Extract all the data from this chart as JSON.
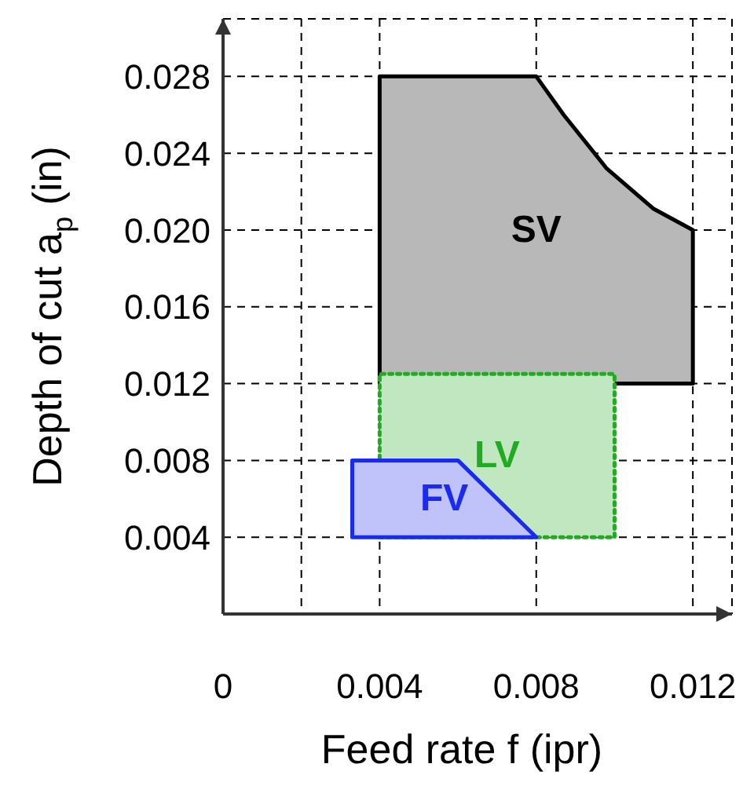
{
  "chart_data": {
    "type": "area",
    "xlabel": "Feed rate  f (ipr)",
    "ylabel": "Depth of cut  a$_{p}$ (in)",
    "xlim": [
      0,
      0.013
    ],
    "ylim": [
      0,
      0.031
    ],
    "xticks": [
      0,
      {
        "value": 0.002,
        "label": null
      },
      0.004,
      0.008,
      0.012
    ],
    "yticks": [
      0.004,
      0.008,
      0.012,
      0.016,
      {
        "value": 0.02,
        "label": "0.020"
      },
      0.024,
      0.028
    ],
    "grid": true,
    "series": [
      {
        "name": "SV",
        "type": "area",
        "color": "#000000",
        "line_style": "solid",
        "x": [
          0.004,
          0.004,
          0.008,
          0.0087,
          0.0098,
          0.011,
          0.012,
          0.012,
          0.004
        ],
        "values": [
          0.012,
          0.028,
          0.028,
          0.026,
          0.0232,
          0.0211,
          0.02,
          0.012,
          0.012
        ]
      },
      {
        "name": "LV",
        "type": "area",
        "color": "#22aa22",
        "line_style": "dotted",
        "x": [
          0.004,
          0.004,
          0.01,
          0.01,
          0.004
        ],
        "values": [
          0.004,
          0.0125,
          0.0125,
          0.004,
          0.004
        ]
      },
      {
        "name": "FV",
        "type": "area",
        "color": "#1a2aee",
        "line_style": "solid",
        "x": [
          0.0033,
          0.0033,
          0.006,
          0.008,
          0.0033
        ],
        "values": [
          0.004,
          0.008,
          0.008,
          0.004,
          0.004
        ]
      }
    ]
  }
}
